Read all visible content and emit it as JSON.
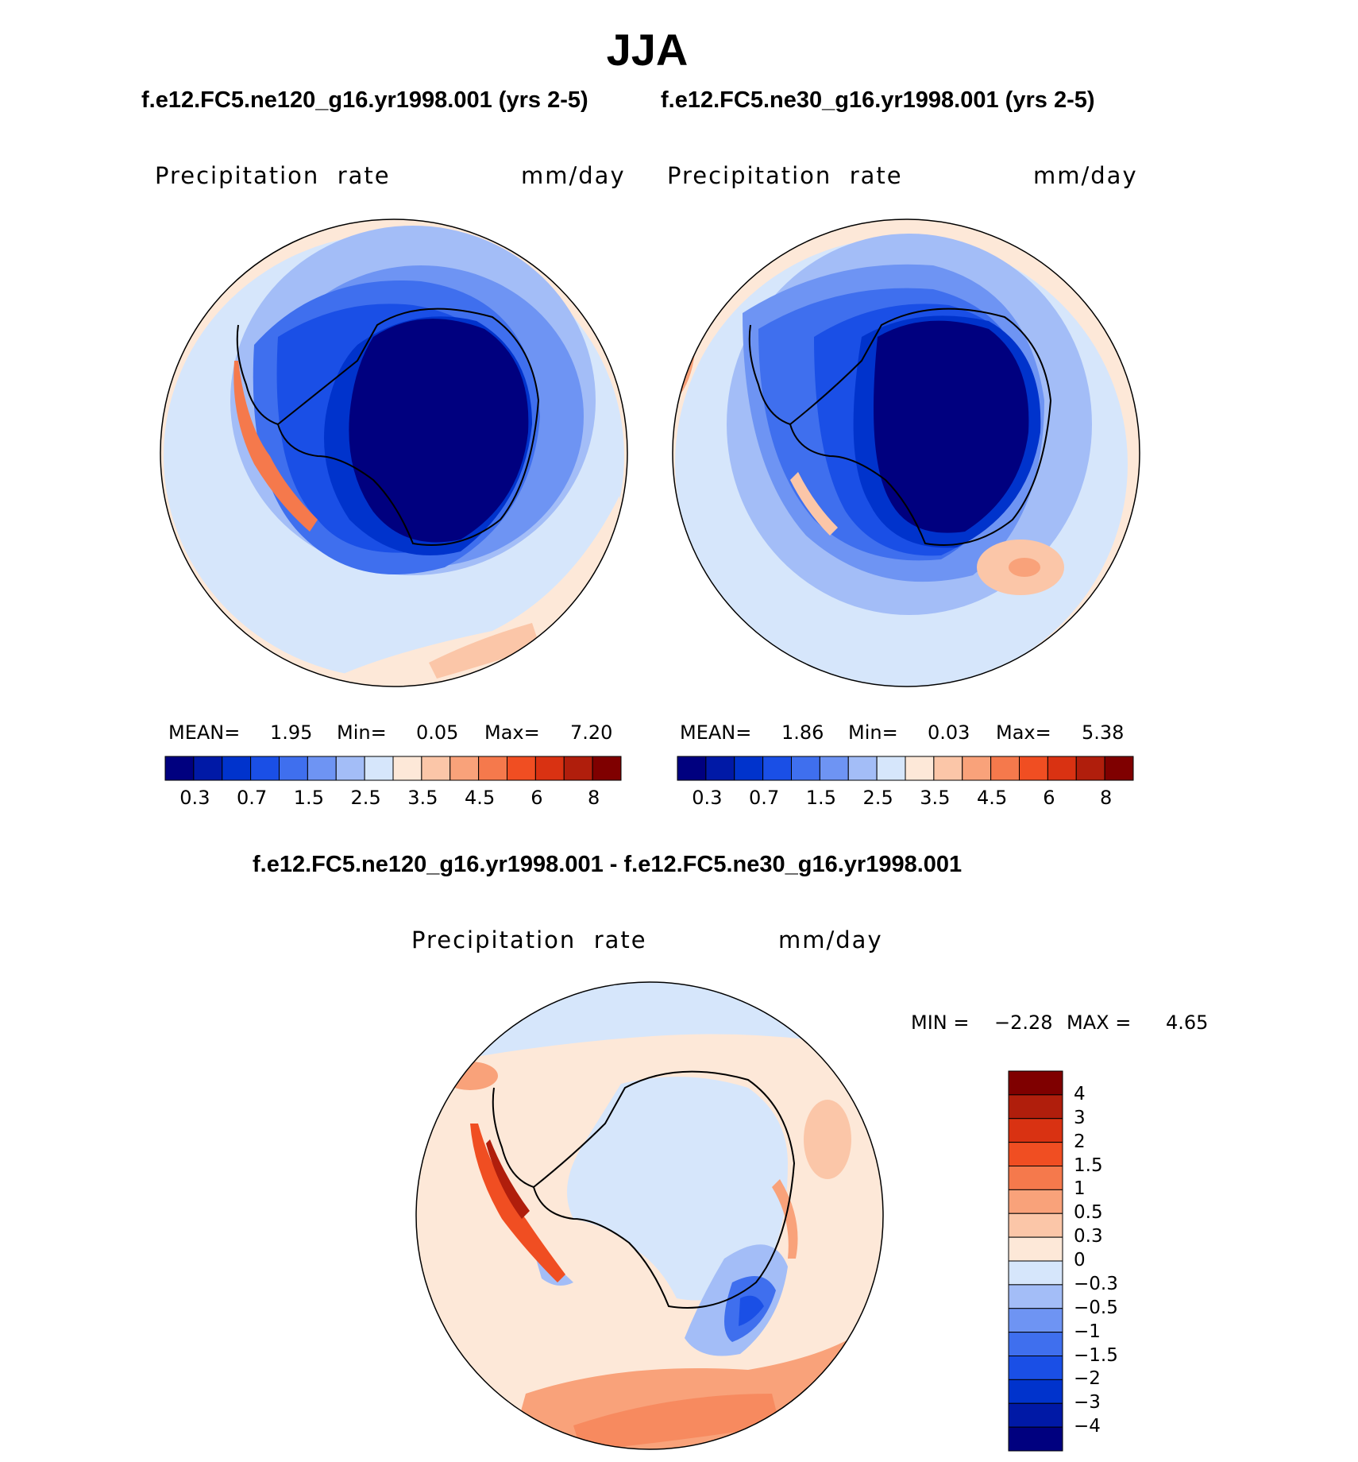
{
  "season": "JJA",
  "panels": [
    {
      "title": "f.e12.FC5.ne120_g16.yr1998.001 (yrs 2-5)",
      "variable": "Precipitation  rate",
      "units": "mm/day",
      "stats": {
        "mean_label": "MEAN=",
        "mean": "1.95",
        "min_label": "Min=",
        "min": "0.05",
        "max_label": "Max=",
        "max": "7.20"
      }
    },
    {
      "title": "f.e12.FC5.ne30_g16.yr1998.001 (yrs 2-5)",
      "variable": "Precipitation  rate",
      "units": "mm/day",
      "stats": {
        "mean_label": "MEAN=",
        "mean": "1.86",
        "min_label": "Min=",
        "min": "0.03",
        "max_label": "Max=",
        "max": "5.38"
      }
    }
  ],
  "diff_panel": {
    "title": "f.e12.FC5.ne120_g16.yr1998.001 - f.e12.FC5.ne30_g16.yr1998.001",
    "variable": "Precipitation  rate",
    "units": "mm/day",
    "stats": {
      "min_label": "MIN =",
      "min": "−2.28",
      "max_label": "MAX =",
      "max": "4.65"
    }
  },
  "chart_data": [
    {
      "type": "heatmap",
      "projection": "south-polar-stereographic",
      "title": "f.e12.FC5.ne120_g16.yr1998.001 (yrs 2-5)",
      "variable": "Precipitation rate",
      "units": "mm/day",
      "mean": 1.95,
      "min": 0.05,
      "max": 7.2,
      "contour_levels": [
        0.2,
        0.3,
        0.5,
        0.7,
        1,
        1.5,
        2,
        2.5,
        3,
        3.5,
        4,
        4.5,
        5,
        6,
        7,
        8
      ],
      "colorbar_tick_labels": [
        "0.3",
        "0.7",
        "1.5",
        "2.5",
        "3.5",
        "4.5",
        "6",
        "8"
      ],
      "colors": [
        "#00007f",
        "#0019a6",
        "#0033cc",
        "#1a4fe6",
        "#3f6fee",
        "#6e94f3",
        "#a3bdf7",
        "#d6e6fb",
        "#fde8d8",
        "#fbc6a8",
        "#f9a27a",
        "#f5794c",
        "#f04e22",
        "#d93212",
        "#b01e0c",
        "#7f0000"
      ]
    },
    {
      "type": "heatmap",
      "projection": "south-polar-stereographic",
      "title": "f.e12.FC5.ne30_g16.yr1998.001 (yrs 2-5)",
      "variable": "Precipitation rate",
      "units": "mm/day",
      "mean": 1.86,
      "min": 0.03,
      "max": 5.38,
      "contour_levels": [
        0.2,
        0.3,
        0.5,
        0.7,
        1,
        1.5,
        2,
        2.5,
        3,
        3.5,
        4,
        4.5,
        5,
        6,
        7,
        8
      ],
      "colorbar_tick_labels": [
        "0.3",
        "0.7",
        "1.5",
        "2.5",
        "3.5",
        "4.5",
        "6",
        "8"
      ],
      "colors": [
        "#00007f",
        "#0019a6",
        "#0033cc",
        "#1a4fe6",
        "#3f6fee",
        "#6e94f3",
        "#a3bdf7",
        "#d6e6fb",
        "#fde8d8",
        "#fbc6a8",
        "#f9a27a",
        "#f5794c",
        "#f04e22",
        "#d93212",
        "#b01e0c",
        "#7f0000"
      ]
    },
    {
      "type": "heatmap",
      "projection": "south-polar-stereographic",
      "title": "f.e12.FC5.ne120_g16.yr1998.001 - f.e12.FC5.ne30_g16.yr1998.001",
      "variable": "Precipitation rate",
      "units": "mm/day",
      "min": -2.28,
      "max": 4.65,
      "contour_levels": [
        -4,
        -3,
        -2,
        -1.5,
        -1,
        -0.5,
        -0.3,
        0,
        0.3,
        0.5,
        1,
        1.5,
        2,
        3,
        4
      ],
      "colorbar_tick_labels": [
        "4",
        "3",
        "2",
        "1.5",
        "1",
        "0.5",
        "0.3",
        "0",
        "−0.3",
        "−0.5",
        "−1",
        "−1.5",
        "−2",
        "−3",
        "−4"
      ],
      "colors_top_to_bottom": [
        "#7f0000",
        "#b01e0c",
        "#d93212",
        "#f04e22",
        "#f5794c",
        "#f9a27a",
        "#fbc6a8",
        "#fde8d8",
        "#d6e6fb",
        "#a3bdf7",
        "#6e94f3",
        "#3f6fee",
        "#1a4fe6",
        "#0033cc",
        "#0019a6",
        "#00007f"
      ]
    }
  ]
}
